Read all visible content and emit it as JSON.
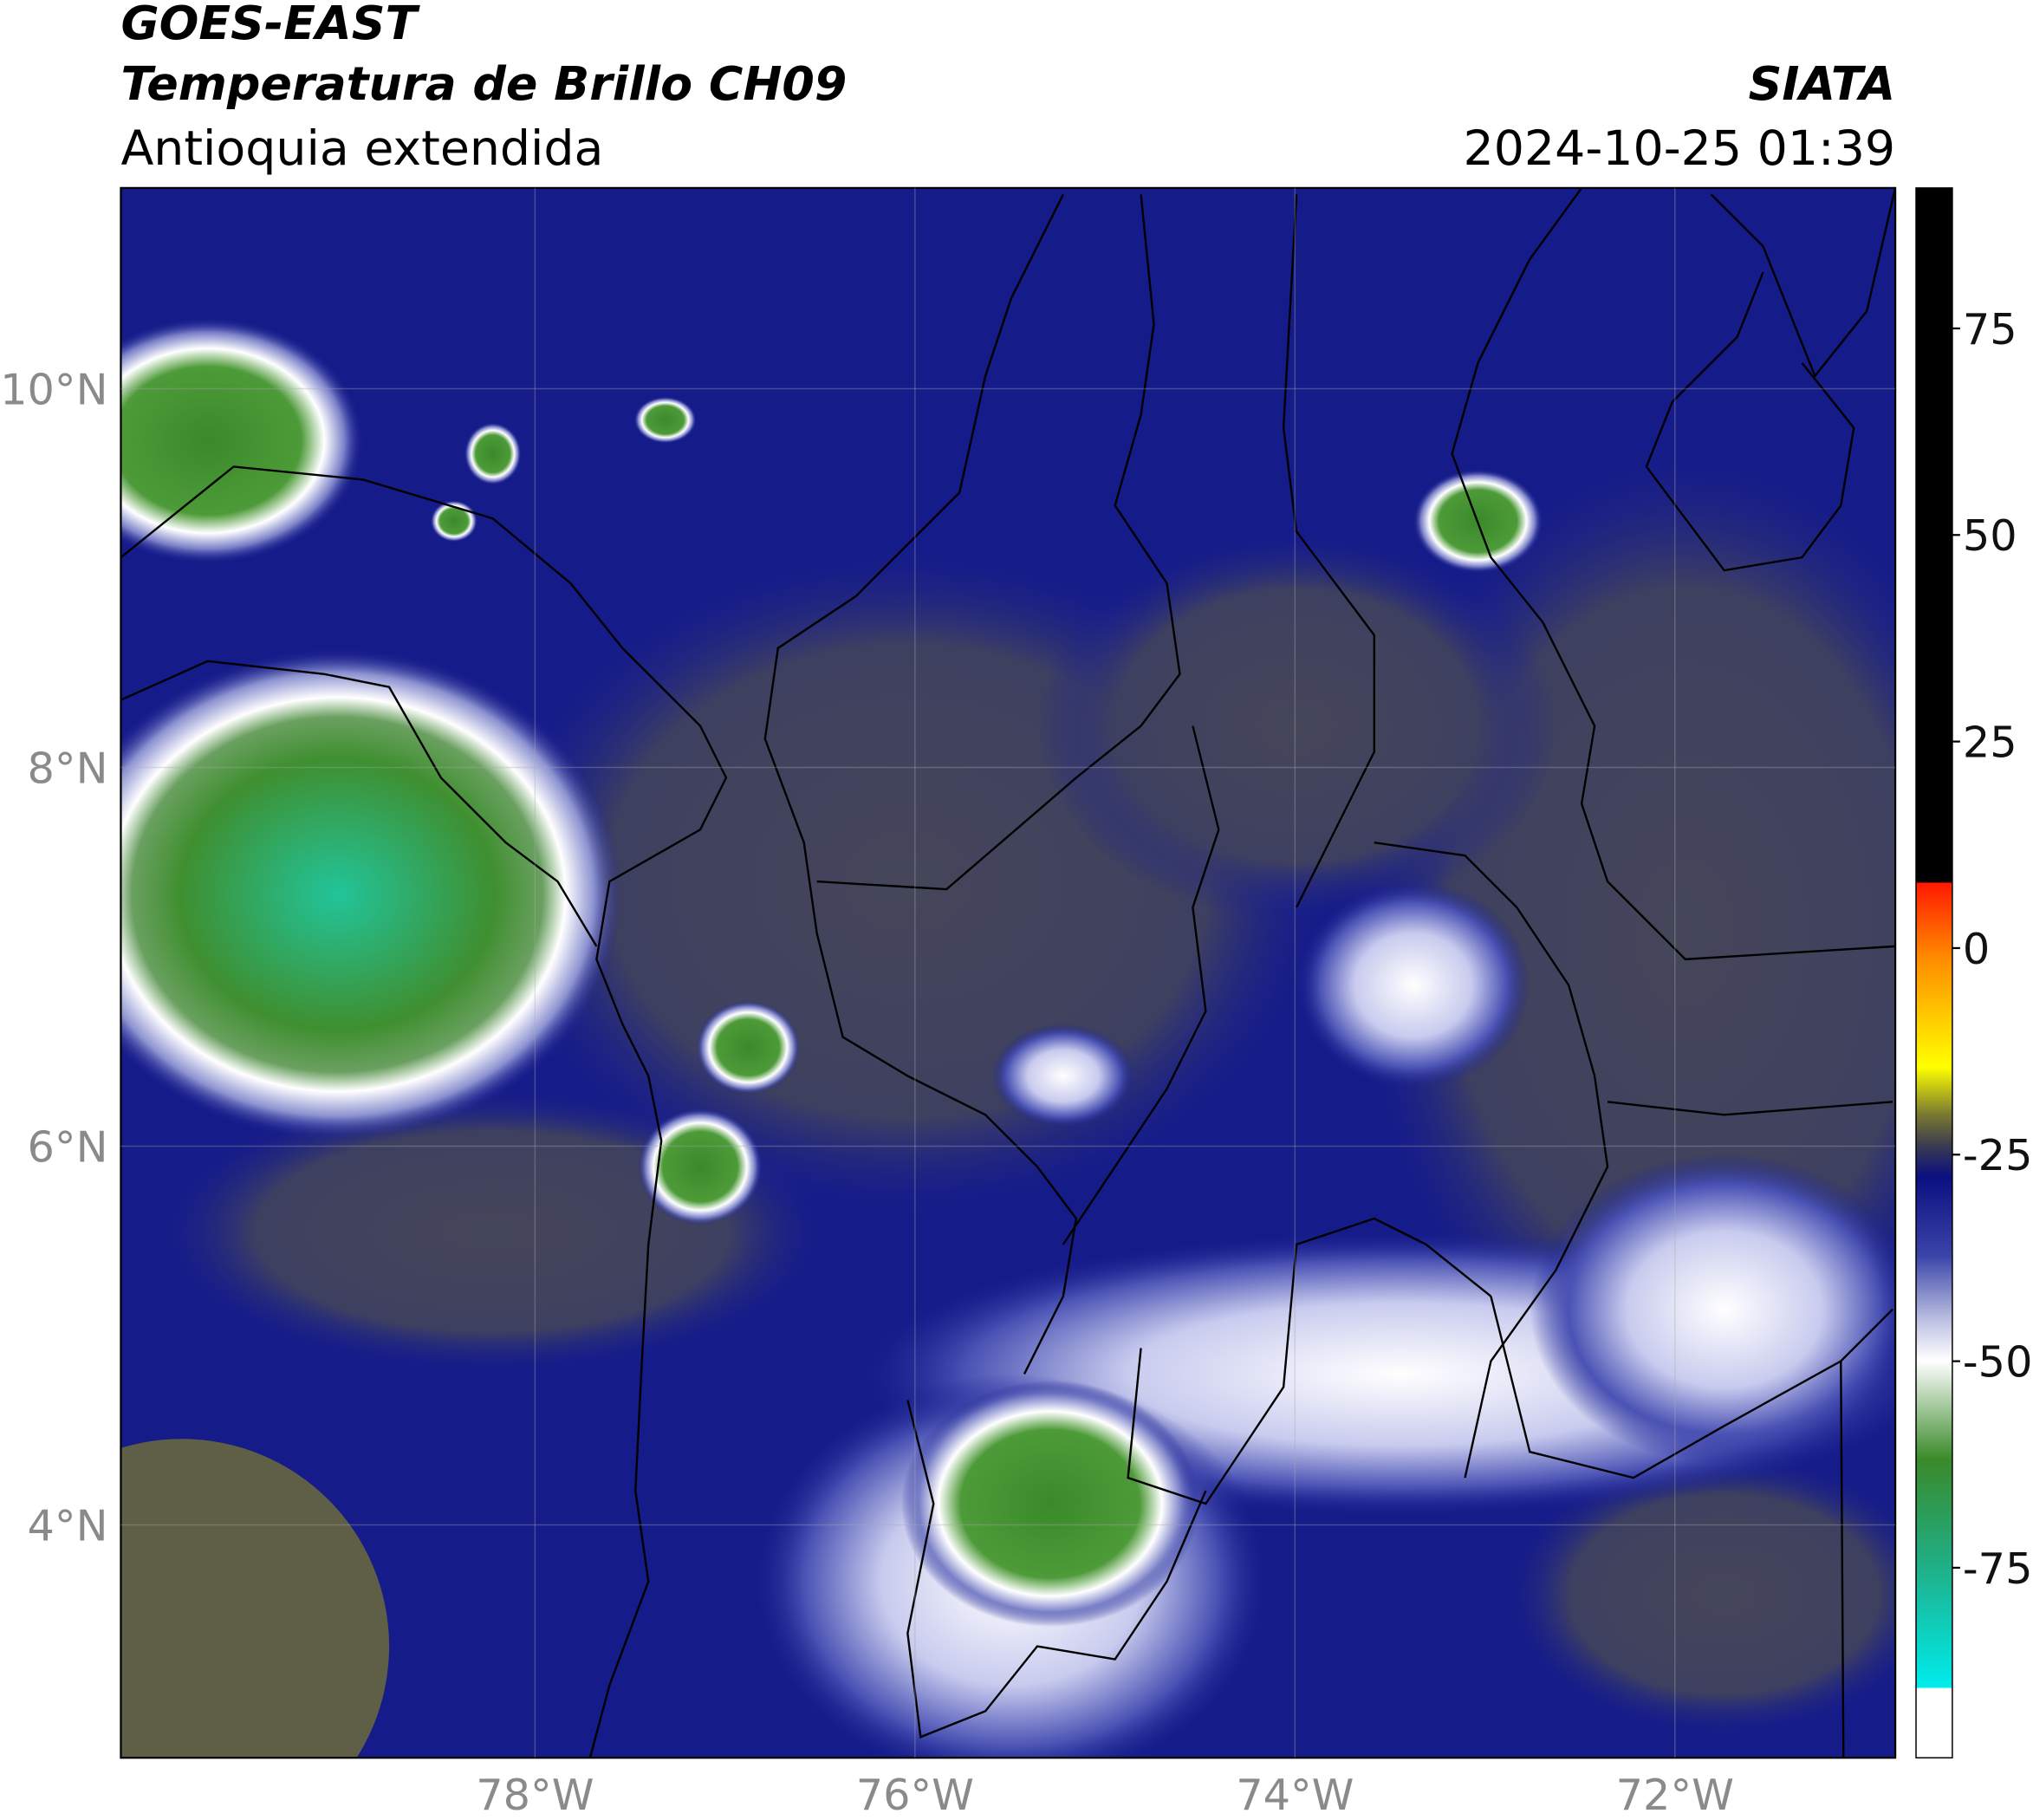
{
  "title": "GOES-EAST",
  "subtitle": "Temperatura de Brillo CH09",
  "region": "Antioquia extendida",
  "source": "SIATA",
  "datetime": "2024-10-25 01:39",
  "map": {
    "xlim": [
      -80.18,
      -70.84
    ],
    "ylim": [
      2.77,
      11.06
    ],
    "xticks": [
      {
        "value": -78,
        "label": "78°W"
      },
      {
        "value": -76,
        "label": "76°W"
      },
      {
        "value": -74,
        "label": "74°W"
      },
      {
        "value": -72,
        "label": "72°W"
      }
    ],
    "yticks": [
      {
        "value": 4,
        "label": "4°N"
      },
      {
        "value": 6,
        "label": "6°N"
      },
      {
        "value": 8,
        "label": "8°N"
      },
      {
        "value": 10,
        "label": "10°N"
      }
    ],
    "grid": true
  },
  "colorbar": {
    "lim": [
      -98,
      92
    ],
    "ticks": [
      -75,
      -50,
      -25,
      0,
      25,
      50,
      75
    ]
  }
}
